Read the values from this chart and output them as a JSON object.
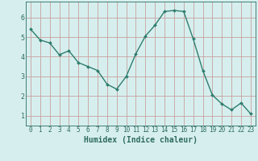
{
  "x": [
    0,
    1,
    2,
    3,
    4,
    5,
    6,
    7,
    8,
    9,
    10,
    11,
    12,
    13,
    14,
    15,
    16,
    17,
    18,
    19,
    20,
    21,
    22,
    23
  ],
  "y": [
    5.4,
    4.85,
    4.7,
    4.1,
    4.3,
    3.7,
    3.5,
    3.3,
    2.6,
    2.35,
    3.0,
    4.15,
    5.05,
    5.6,
    6.3,
    6.35,
    6.3,
    4.9,
    3.3,
    2.05,
    1.6,
    1.3,
    1.65,
    1.1
  ],
  "xlabel": "Humidex (Indice chaleur)",
  "line_color": "#2e7d6e",
  "marker": "D",
  "marker_size": 2.0,
  "bg_color": "#d6efee",
  "grid_color": "#c8a0a0",
  "tick_color": "#2e6b60",
  "xlim": [
    -0.5,
    23.5
  ],
  "ylim": [
    0.5,
    6.8
  ],
  "yticks": [
    1,
    2,
    3,
    4,
    5,
    6
  ],
  "xlabel_fontsize": 7.0,
  "tick_fontsize": 6.0,
  "line_width": 1.0
}
